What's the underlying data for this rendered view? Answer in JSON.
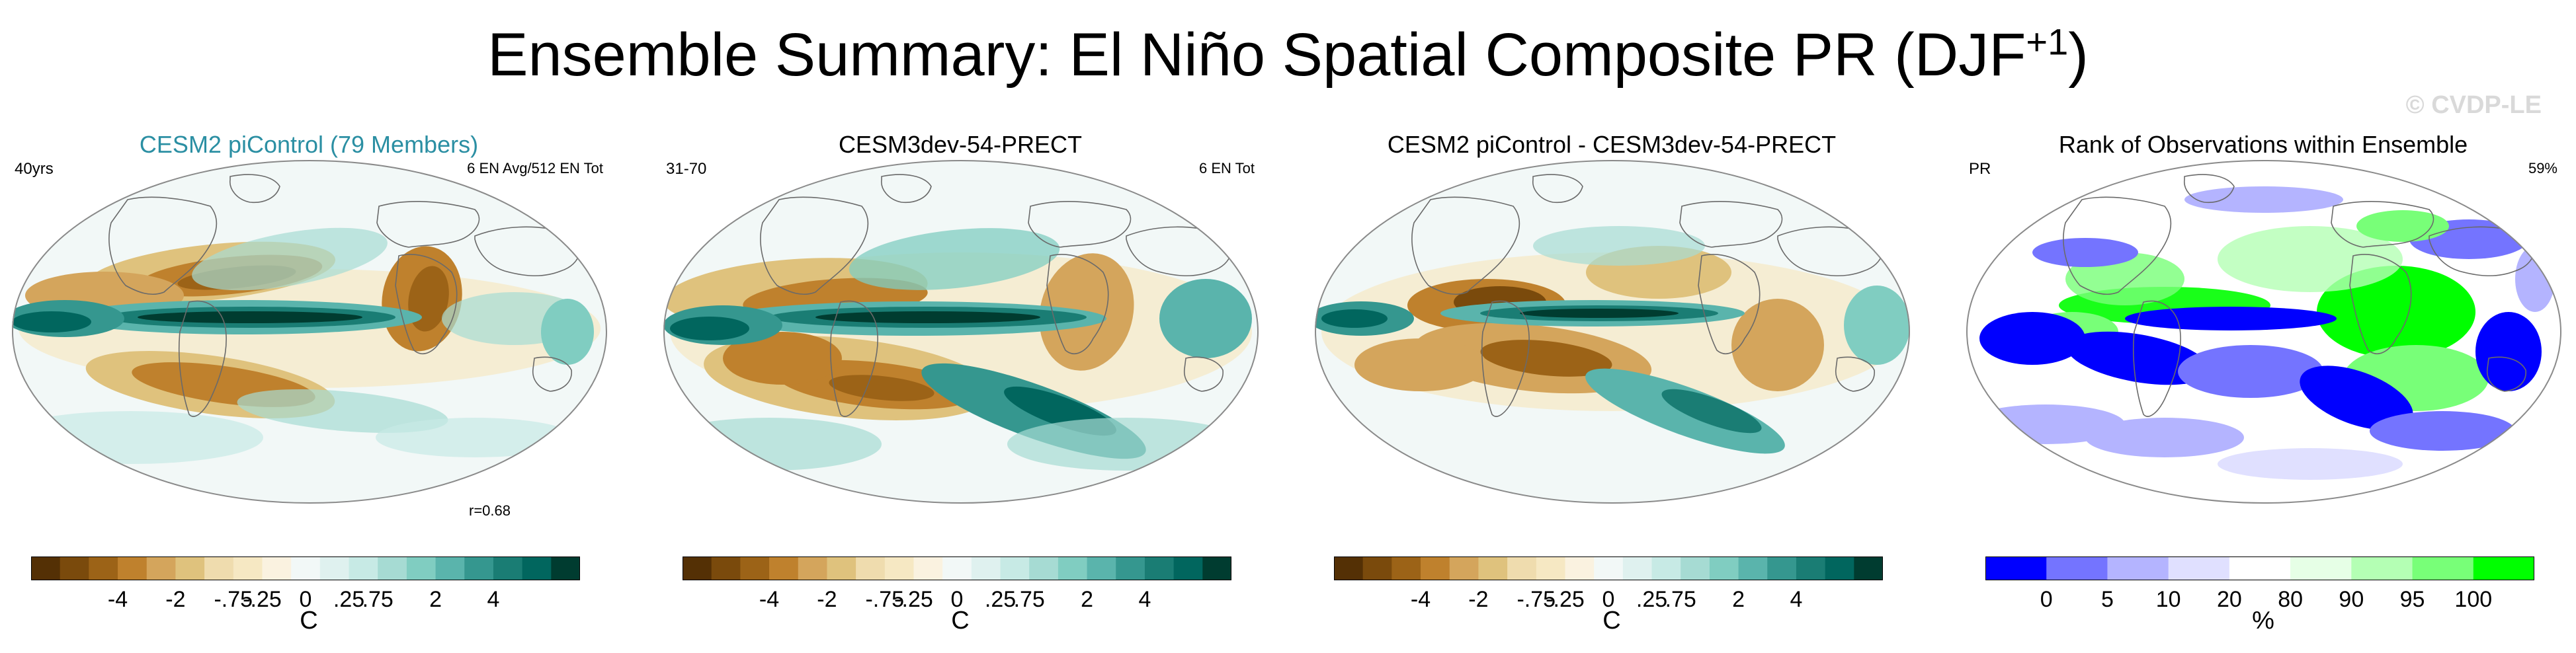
{
  "figure": {
    "title_main": "Ensemble Summary: El Niño Spatial Composite PR (DJF",
    "title_sup": "+1",
    "title_close": ")",
    "watermark": "© CVDP-LE"
  },
  "colors": {
    "brown_teal_scale": [
      "#543005",
      "#7a4a0c",
      "#9c6317",
      "#bf812d",
      "#d4a55c",
      "#dfc27d",
      "#efdcae",
      "#f6e8c3",
      "#faf2e0",
      "#f2f8f7",
      "#dff1ef",
      "#c7eae5",
      "#a6dbd3",
      "#80cdc1",
      "#5ab4ac",
      "#35978f",
      "#1a7d74",
      "#01665e",
      "#003c30"
    ],
    "rank_scale": [
      "#0000ff",
      "#7474ff",
      "#b4b4ff",
      "#e0e0ff",
      "#ffffff",
      "#e6ffe6",
      "#b4ffb4",
      "#78ff78",
      "#00ff00"
    ],
    "coast": "#6a6a6a",
    "panel1_title": "#2b8fa3"
  },
  "chart_data": [
    {
      "type": "heatmap",
      "title": "CESM2 piControl (79 Members)",
      "left_label": "40yrs",
      "right_label": "6 EN Avg/512 EN Tot",
      "annotation": "r=0.68",
      "colorbar_ticks": [
        "-4",
        "-2",
        "-.75",
        "-.25",
        "0",
        ".25",
        ".75",
        "2",
        "4"
      ],
      "colorbar_unit": "C"
    },
    {
      "type": "heatmap",
      "title": "CESM3dev-54-PRECT",
      "left_label": "31-70",
      "right_label": "6 EN Tot",
      "colorbar_ticks": [
        "-4",
        "-2",
        "-.75",
        "-.25",
        "0",
        ".25",
        ".75",
        "2",
        "4"
      ],
      "colorbar_unit": "C"
    },
    {
      "type": "heatmap",
      "title": "CESM2 piControl - CESM3dev-54-PRECT",
      "colorbar_ticks": [
        "-4",
        "-2",
        "-.75",
        "-.25",
        "0",
        ".25",
        ".75",
        "2",
        "4"
      ],
      "colorbar_unit": "C"
    },
    {
      "type": "heatmap",
      "title": "Rank of Observations within Ensemble",
      "left_label": "PR",
      "right_label": "59%",
      "colorbar_ticks": [
        "0",
        "5",
        "10",
        "20",
        "80",
        "90",
        "95",
        "100"
      ],
      "colorbar_unit": "%"
    }
  ]
}
